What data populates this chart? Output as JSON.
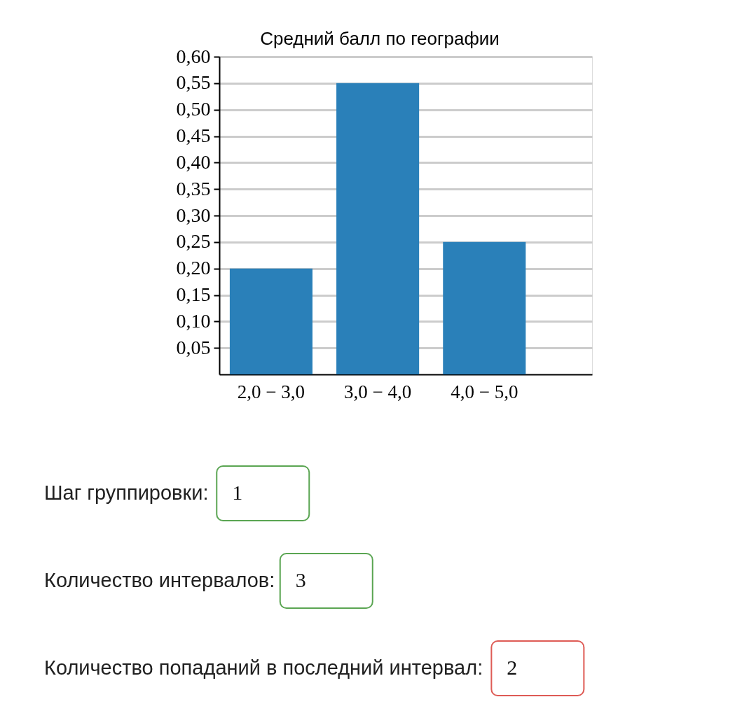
{
  "chart_data": [
    {
      "type": "bar",
      "title": "Средний балл по географии",
      "categories": [
        "2,0 − 3,0",
        "3,0 − 4,0",
        "4,0 − 5,0"
      ],
      "values": [
        0.2,
        0.55,
        0.25
      ],
      "color": "#2a80b9",
      "ylim": [
        0,
        0.6
      ],
      "yticks": [
        {
          "value": 0.05,
          "label": "0,05"
        },
        {
          "value": 0.1,
          "label": "0,10"
        },
        {
          "value": 0.15,
          "label": "0,15"
        },
        {
          "value": 0.2,
          "label": "0,20"
        },
        {
          "value": 0.25,
          "label": "0,25"
        },
        {
          "value": 0.3,
          "label": "0,30"
        },
        {
          "value": 0.35,
          "label": "0,35"
        },
        {
          "value": 0.4,
          "label": "0,40"
        },
        {
          "value": 0.45,
          "label": "0,45"
        },
        {
          "value": 0.5,
          "label": "0,50"
        },
        {
          "value": 0.55,
          "label": "0,55"
        },
        {
          "value": 0.6,
          "label": "0,60"
        }
      ],
      "grid": "y"
    },
    {
      "type": "other",
      "annotations": [
        "Шаг группировки:",
        "1",
        "Количество интервалов:",
        "3",
        "Количество попаданий в последний интервал:",
        "2"
      ]
    }
  ]
}
